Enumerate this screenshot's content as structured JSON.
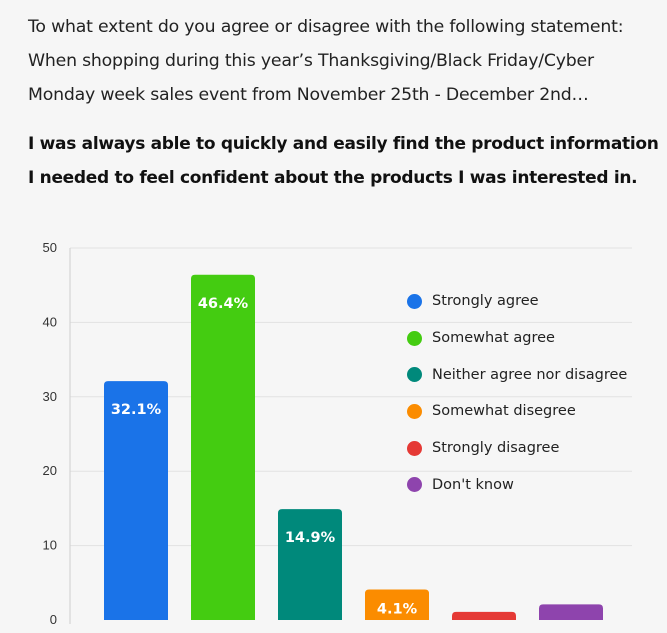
{
  "intro": {
    "lines": [
      "To what extent do you agree or disagree with the following statement:",
      "When shopping during this year’s Thanksgiving/Black Friday/Cyber",
      "Monday week sales event from November 25th - December 2nd…"
    ]
  },
  "statement": {
    "lines": [
      "I was always able to quickly and easily find the product information",
      "I needed to feel confident about the products I was interested in."
    ]
  },
  "chart_data": {
    "type": "bar",
    "categories": [
      "Strongly agree",
      "Somewhat agree",
      "Neither agree nor disagree",
      "Somewhat disegree",
      "Strongly disagree",
      "Don't know"
    ],
    "values": [
      32.1,
      46.4,
      14.9,
      4.1,
      1.1,
      2.1
    ],
    "data_labels": [
      "32.1%",
      "46.4%",
      "14.9%",
      "4.1%",
      "",
      ""
    ],
    "colors": [
      "#1a73e8",
      "#44cc11",
      "#00897b",
      "#fb8c00",
      "#e53935",
      "#8e44ad"
    ],
    "ylim": [
      0,
      50
    ],
    "yticks": [
      0,
      10,
      20,
      30,
      40,
      50
    ],
    "grid": true,
    "legend_position": "right",
    "title": "",
    "xlabel": "",
    "ylabel": ""
  }
}
